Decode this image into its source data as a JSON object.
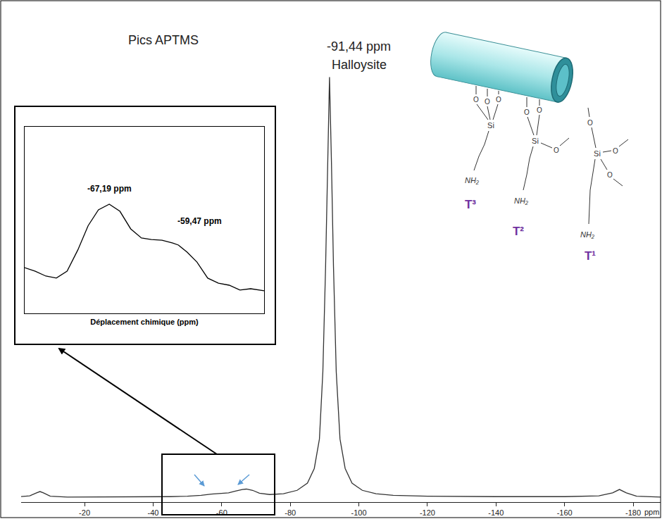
{
  "chart_data": [
    {
      "type": "line",
      "x_label": "ppm",
      "x": [
        -1,
        -4,
        -6,
        -7,
        -8,
        -10,
        -15,
        -20,
        -30,
        -40,
        -45,
        -50,
        -54,
        -57,
        -59.47,
        -62,
        -64,
        -66,
        -67.19,
        -69,
        -71,
        -74,
        -78,
        -82,
        -85,
        -87,
        -88.5,
        -89.5,
        -90.3,
        -90.9,
        -91.44,
        -92,
        -92.6,
        -93.4,
        -94.5,
        -96,
        -98,
        -101,
        -105,
        -110,
        -120,
        -140,
        -160,
        -170,
        -174,
        -176,
        -178,
        -181,
        -188
      ],
      "values": [
        0.3,
        0.5,
        1.2,
        1.5,
        1.2,
        0.4,
        0.2,
        0.2,
        0.2,
        0.3,
        0.3,
        0.4,
        0.6,
        0.9,
        1.1,
        1.2,
        1.6,
        2.0,
        2.1,
        1.8,
        1.1,
        0.8,
        1.0,
        1.8,
        3.5,
        7,
        14,
        30,
        55,
        80,
        100,
        80,
        55,
        30,
        14,
        7,
        3.5,
        1.8,
        1.0,
        0.6,
        0.4,
        0.3,
        0.3,
        0.5,
        1.2,
        2.0,
        1.2,
        0.4,
        0.2
      ],
      "color": "#333333",
      "xlim": [
        -1.5,
        -188
      ],
      "xticks": [
        -20,
        -40,
        -60,
        -80,
        -100,
        -120,
        -140,
        -160,
        -180
      ],
      "ylim": [
        -1,
        118
      ],
      "tick_labels": "x",
      "grid": false,
      "annotations": [
        {
          "text": "-91,44 ppm",
          "x": -91.44,
          "y": 100
        },
        {
          "text": "Halloysite",
          "x": -91.44,
          "y": 100
        },
        {
          "text": "Pics APTMS"
        }
      ]
    },
    {
      "type": "line",
      "x_label": "Déplacement chimique (ppm)",
      "x": [
        -76.64,
        -75.46,
        -74.28,
        -73.1,
        -71.9,
        -70.7,
        -69.55,
        -68.4,
        -67.19,
        -66.0,
        -64.8,
        -63.6,
        -62.5,
        -61.3,
        -60.1,
        -59.47,
        -58.5,
        -57.4,
        -56.2,
        -55.0,
        -53.8,
        -52.6,
        -51.4,
        -49.9
      ],
      "values": [
        24.5,
        22.6,
        20,
        18.9,
        22.6,
        34,
        47,
        55.5,
        58.5,
        54.7,
        45.3,
        40.4,
        39.6,
        39.2,
        37.7,
        36.6,
        32.8,
        27.5,
        18.9,
        16.2,
        15.1,
        12.5,
        13.2,
        12.1
      ],
      "color": "#000000",
      "xlim": [
        -76.64,
        -49.9
      ],
      "ylim": [
        0,
        100
      ],
      "tick_labels": false,
      "grid": false,
      "annotations": [
        {
          "text": "-67,19 ppm",
          "x": -67.19,
          "y": 58.5
        },
        {
          "text": "-59,47 ppm",
          "x": -59.47,
          "y": 36.6
        }
      ]
    }
  ],
  "diagram": {
    "labels": [
      "T³",
      "T²",
      "T¹"
    ],
    "amine": "NH₂",
    "silicon": "Si",
    "oxygen": "O"
  }
}
